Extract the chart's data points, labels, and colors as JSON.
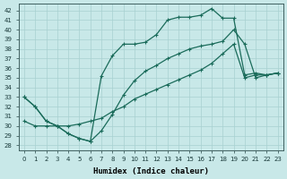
{
  "xlabel": "Humidex (Indice chaleur)",
  "bg_color": "#c8e8e8",
  "grid_color": "#a8d0d0",
  "line_color": "#1a6b5a",
  "xlim": [
    -0.5,
    23.5
  ],
  "ylim": [
    27.5,
    42.7
  ],
  "xticks": [
    0,
    1,
    2,
    3,
    4,
    5,
    6,
    7,
    8,
    9,
    10,
    11,
    12,
    13,
    14,
    15,
    16,
    17,
    18,
    19,
    20,
    21,
    22,
    23
  ],
  "yticks": [
    28,
    29,
    30,
    31,
    32,
    33,
    34,
    35,
    36,
    37,
    38,
    39,
    40,
    41,
    42
  ],
  "line1_x": [
    0,
    1,
    2,
    3,
    4,
    5,
    6,
    7,
    8,
    9,
    10,
    11,
    12,
    13,
    14,
    15,
    16,
    17,
    18,
    19,
    20,
    21,
    22,
    23
  ],
  "line1_y": [
    33.0,
    32.0,
    30.5,
    30.0,
    29.2,
    28.7,
    28.4,
    35.2,
    37.3,
    38.5,
    38.5,
    38.7,
    39.5,
    41.0,
    41.3,
    41.3,
    41.5,
    42.2,
    41.2,
    41.2,
    35.3,
    35.5,
    35.3,
    35.5
  ],
  "line2_x": [
    0,
    1,
    2,
    3,
    4,
    5,
    6,
    7,
    8,
    9,
    10,
    11,
    12,
    13,
    14,
    15,
    16,
    17,
    18,
    19,
    20,
    21,
    22,
    23
  ],
  "line2_y": [
    33.0,
    32.0,
    30.5,
    30.0,
    29.2,
    28.7,
    28.4,
    29.5,
    31.2,
    33.2,
    34.7,
    35.7,
    36.3,
    37.0,
    37.5,
    38.0,
    38.3,
    38.5,
    38.8,
    40.0,
    38.5,
    35.0,
    35.3,
    35.5
  ],
  "line3_x": [
    0,
    1,
    2,
    3,
    4,
    5,
    6,
    7,
    8,
    9,
    10,
    11,
    12,
    13,
    14,
    15,
    16,
    17,
    18,
    19,
    20,
    21,
    22,
    23
  ],
  "line3_y": [
    30.5,
    30.0,
    30.0,
    30.0,
    30.0,
    30.2,
    30.5,
    30.8,
    31.5,
    32.0,
    32.8,
    33.3,
    33.8,
    34.3,
    34.8,
    35.3,
    35.8,
    36.5,
    37.5,
    38.5,
    35.0,
    35.3,
    35.3,
    35.5
  ],
  "marker_size": 2.5,
  "linewidth": 0.9,
  "tick_fontsize": 5.0,
  "xlabel_fontsize": 6.5
}
